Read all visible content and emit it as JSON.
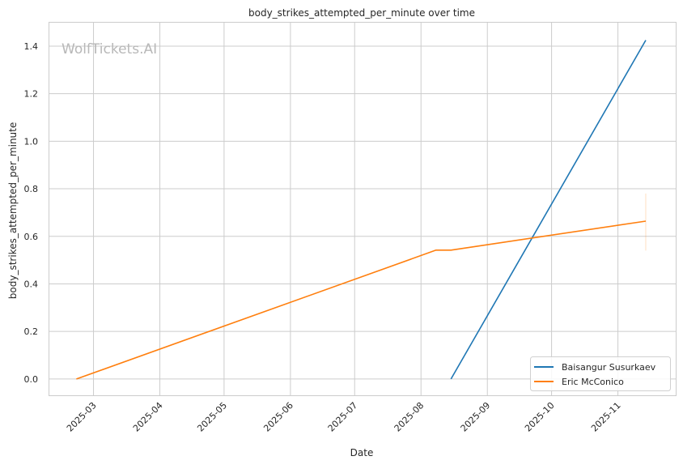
{
  "chart_data": {
    "type": "line",
    "title": "body_strikes_attempted_per_minute over time",
    "xlabel": "Date",
    "ylabel": "body_strikes_attempted_per_minute",
    "watermark": "WolfTickets.AI",
    "xlim": [
      "2025-02-08",
      "2025-11-28"
    ],
    "ylim": [
      -0.072,
      1.502
    ],
    "x_ticks": [
      "2025-03",
      "2025-04",
      "2025-05",
      "2025-06",
      "2025-07",
      "2025-08",
      "2025-09",
      "2025-10",
      "2025-11"
    ],
    "y_ticks": [
      "0.0",
      "0.2",
      "0.4",
      "0.6",
      "0.8",
      "1.0",
      "1.2",
      "1.4"
    ],
    "grid": true,
    "legend_position": "bottom-right",
    "series": [
      {
        "name": "Baisangur Susurkaev",
        "color": "#1f77b4",
        "x": [
          "2025-08-15",
          "2025-11-14"
        ],
        "y": [
          0.0,
          1.425
        ]
      },
      {
        "name": "Eric McConico",
        "color": "#ff7f0e",
        "x": [
          "2025-02-21",
          "2025-08-08",
          "2025-08-15",
          "2025-11-14"
        ],
        "y": [
          0.0,
          0.542,
          0.542,
          0.664
        ],
        "final_interval": [
          0.54,
          0.78
        ]
      }
    ]
  }
}
